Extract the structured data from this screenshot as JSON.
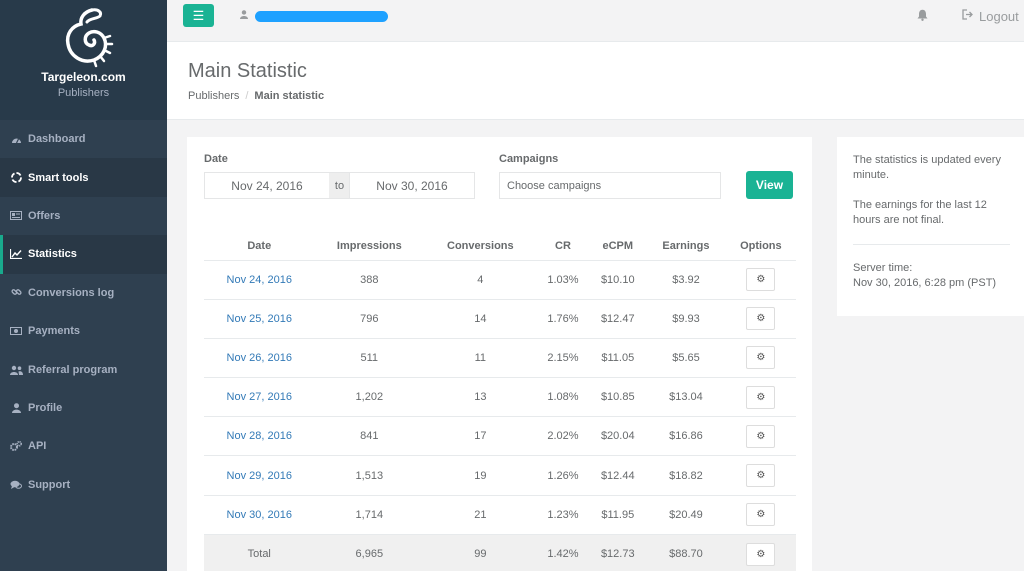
{
  "brand": {
    "name": "Targeleon.com",
    "subtitle": "Publishers"
  },
  "sidebar": {
    "items": [
      {
        "label": "Dashboard",
        "icon": "dashboard-icon"
      },
      {
        "label": "Smart tools",
        "icon": "recycle-icon"
      },
      {
        "label": "Offers",
        "icon": "newspaper-icon"
      },
      {
        "label": "Statistics",
        "icon": "line-chart-icon"
      },
      {
        "label": "Conversions log",
        "icon": "link-icon"
      },
      {
        "label": "Payments",
        "icon": "money-icon"
      },
      {
        "label": "Referral program",
        "icon": "users-icon"
      },
      {
        "label": "Profile",
        "icon": "user-icon"
      },
      {
        "label": "API",
        "icon": "cogs-icon"
      },
      {
        "label": "Support",
        "icon": "chat-icon"
      }
    ]
  },
  "topbar": {
    "logout_label": "Logout"
  },
  "page": {
    "title": "Main Statistic"
  },
  "breadcrumb": {
    "parent": "Publishers",
    "separator": "/",
    "current": "Main statistic"
  },
  "filters": {
    "date_label": "Date",
    "date_from": "Nov 24, 2016",
    "date_sep": "to",
    "date_to": "Nov 30, 2016",
    "campaigns_label": "Campaigns",
    "campaigns_placeholder": "Choose campaigns",
    "view_label": "View"
  },
  "table": {
    "headers": [
      "Date",
      "Impressions",
      "Conversions",
      "CR",
      "eCPM",
      "Earnings",
      "Options"
    ],
    "rows": [
      {
        "date": "Nov 24, 2016",
        "impressions": "388",
        "conversions": "4",
        "cr": "1.03%",
        "ecpm": "$10.10",
        "earnings": "$3.92"
      },
      {
        "date": "Nov 25, 2016",
        "impressions": "796",
        "conversions": "14",
        "cr": "1.76%",
        "ecpm": "$12.47",
        "earnings": "$9.93"
      },
      {
        "date": "Nov 26, 2016",
        "impressions": "511",
        "conversions": "11",
        "cr": "2.15%",
        "ecpm": "$11.05",
        "earnings": "$5.65"
      },
      {
        "date": "Nov 27, 2016",
        "impressions": "1,202",
        "conversions": "13",
        "cr": "1.08%",
        "ecpm": "$10.85",
        "earnings": "$13.04"
      },
      {
        "date": "Nov 28, 2016",
        "impressions": "841",
        "conversions": "17",
        "cr": "2.02%",
        "ecpm": "$20.04",
        "earnings": "$16.86"
      },
      {
        "date": "Nov 29, 2016",
        "impressions": "1,513",
        "conversions": "19",
        "cr": "1.26%",
        "ecpm": "$12.44",
        "earnings": "$18.82"
      },
      {
        "date": "Nov 30, 2016",
        "impressions": "1,714",
        "conversions": "21",
        "cr": "1.23%",
        "ecpm": "$11.95",
        "earnings": "$20.49"
      }
    ],
    "total": {
      "label": "Total",
      "impressions": "6,965",
      "conversions": "99",
      "cr": "1.42%",
      "ecpm": "$12.73",
      "earnings": "$88.70"
    }
  },
  "info": {
    "note1": "The statistics is updated every minute.",
    "note2": "The earnings for the last 12 hours are not final.",
    "server_time_label": "Server time:",
    "server_time": "Nov 30, 2016, 6:28 pm (PST)"
  },
  "colors": {
    "sidebar_bg": "#2f4050",
    "accent": "#1ab394",
    "link": "#337ab7"
  }
}
